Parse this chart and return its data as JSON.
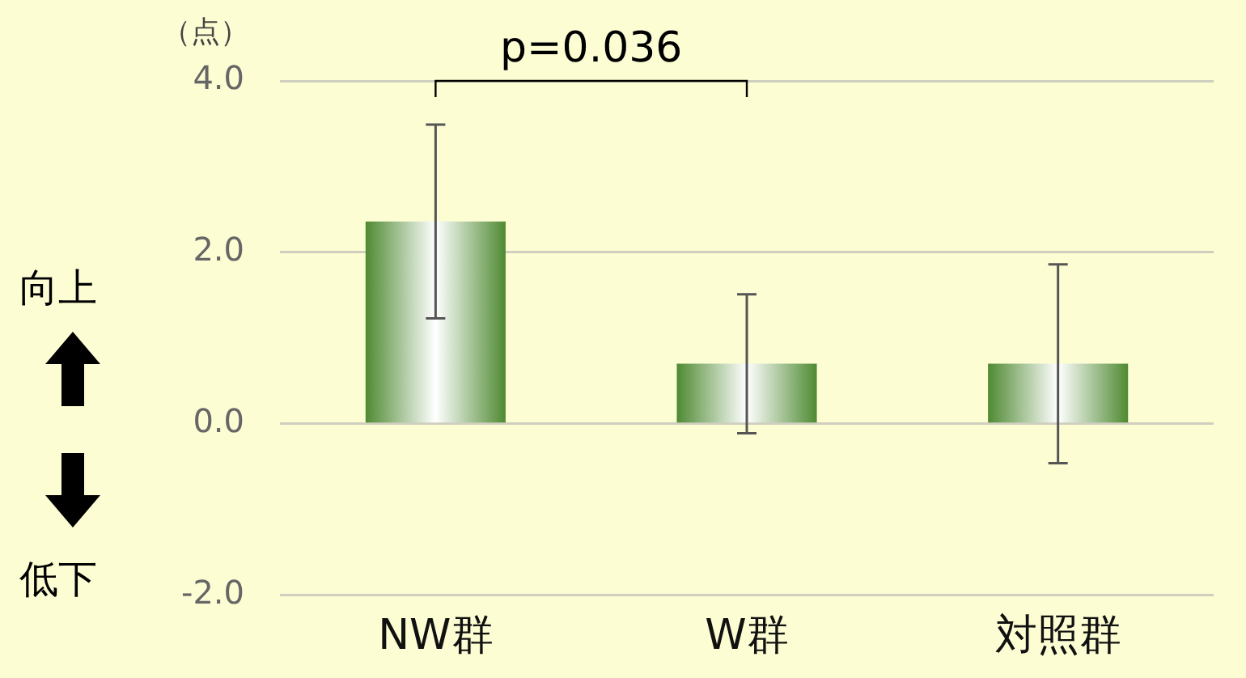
{
  "chart_data": {
    "type": "bar",
    "ylabel": "（点）",
    "categories": [
      "NW群",
      "W群",
      "対照群"
    ],
    "series": [
      {
        "color": "#4f8a32",
        "values": [
          2.36,
          0.7,
          0.7
        ],
        "errors": [
          1.13,
          0.81,
          1.16
        ]
      }
    ],
    "ylim": [
      -2.0,
      4.0
    ],
    "yticks": [
      {
        "value": -2,
        "label": "-2.0"
      },
      {
        "value": 0,
        "label": "0.0"
      },
      {
        "value": 2,
        "label": "2.0"
      },
      {
        "value": 4,
        "label": "4.0"
      }
    ],
    "grid": "y",
    "legend": false,
    "annotations": [
      "p=0.036",
      "向上",
      "低下"
    ]
  }
}
